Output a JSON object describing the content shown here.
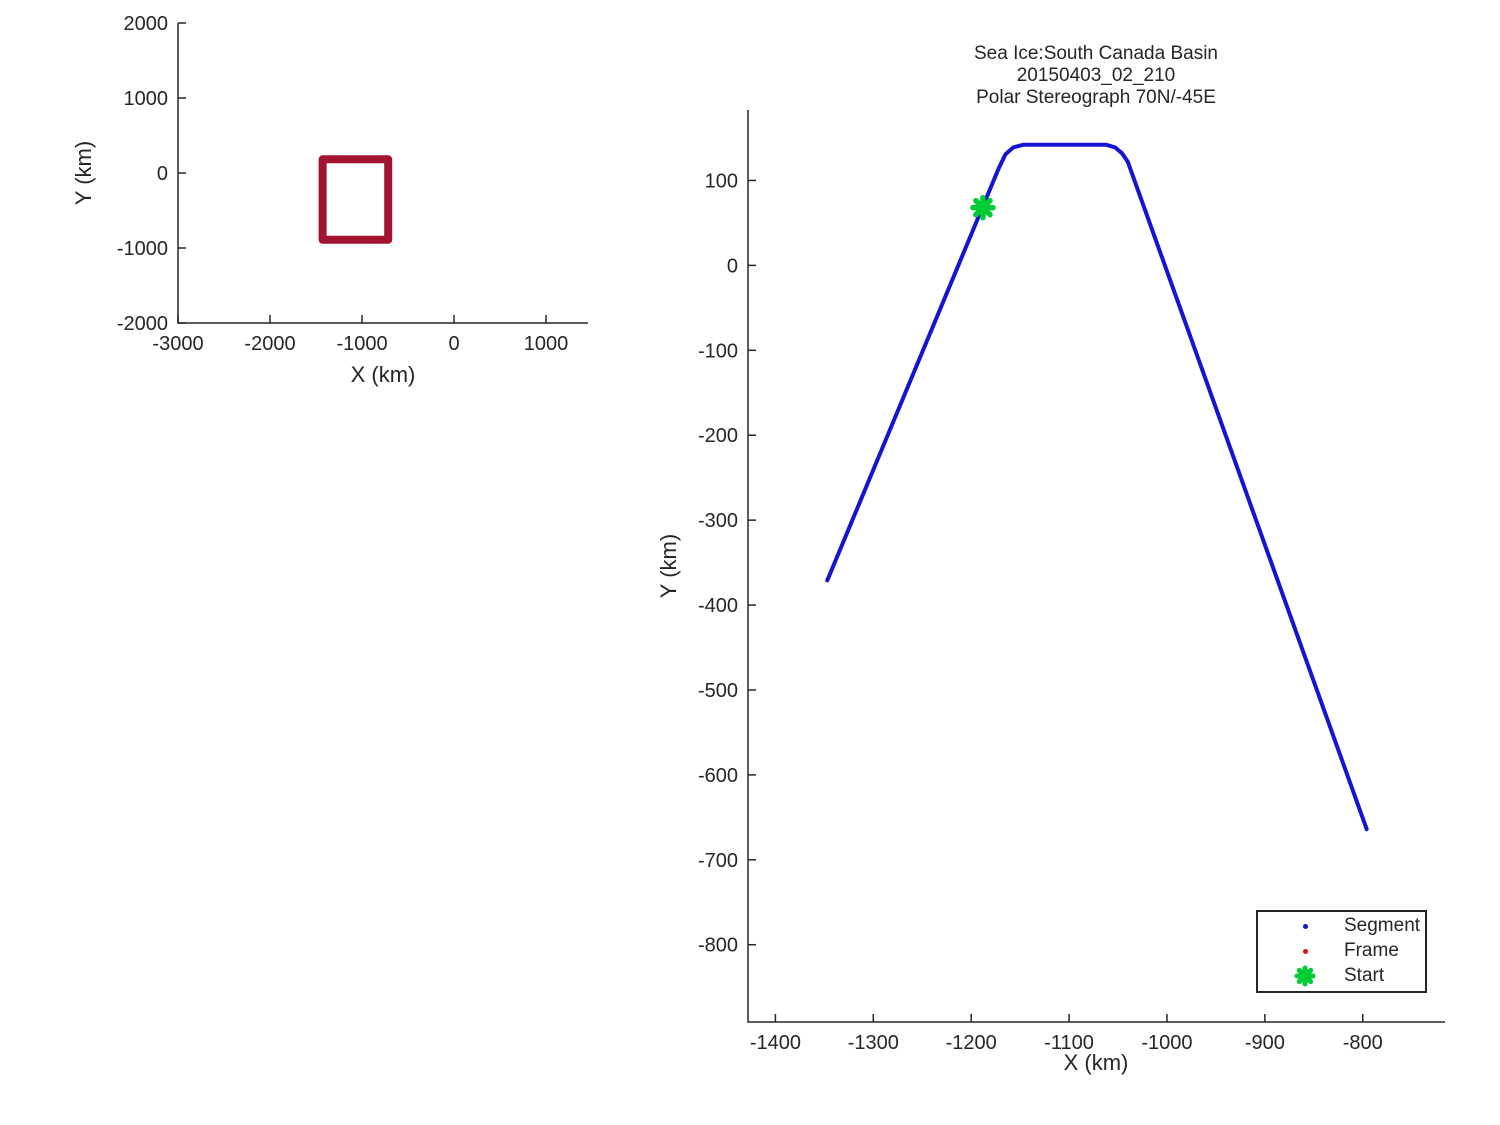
{
  "style": {
    "axis_color": "#262626",
    "background": "#ffffff",
    "segment_blue": "#1414D2",
    "frame_red": "#DC1414",
    "start_green": "#00CC33",
    "coverage_box_red": "#A2142F"
  },
  "chart_data": [
    {
      "id": "overview",
      "type": "line",
      "title": "",
      "xlabel": "X (km)",
      "ylabel": "Y (km)",
      "xlim": [
        -3000,
        1456
      ],
      "ylim": [
        -2000,
        2000
      ],
      "xticks": [
        -3000,
        -2000,
        -1000,
        0,
        1000
      ],
      "yticks": [
        -2000,
        -1000,
        0,
        1000,
        2000
      ],
      "grid": false,
      "series": [
        {
          "name": "coverage-box-outline",
          "color": "#A2142F",
          "width": 8,
          "closed": true,
          "points": [
            [
              -1428,
              183
            ],
            [
              -716,
              183
            ],
            [
              -716,
              -891
            ],
            [
              -1428,
              -891
            ]
          ]
        }
      ]
    },
    {
      "id": "trajectory",
      "type": "line",
      "title_lines": [
        "Sea Ice:South Canada Basin",
        "20150403_02_210",
        "Polar Stereograph 70N/-45E"
      ],
      "xlabel": "X (km)",
      "ylabel": "Y (km)",
      "xlim": [
        -1428,
        -716
      ],
      "ylim": [
        -891,
        183
      ],
      "xticks": [
        -1400,
        -1300,
        -1200,
        -1100,
        -1000,
        -900,
        -800
      ],
      "yticks": [
        -800,
        -700,
        -600,
        -500,
        -400,
        -300,
        -200,
        -100,
        0,
        100
      ],
      "grid": false,
      "series": [
        {
          "name": "segment-track",
          "color": "#1414D2",
          "width": 4,
          "closed": false,
          "points": [
            [
              -1347,
              -371
            ],
            [
              -1172,
              114
            ],
            [
              -1165,
              131
            ],
            [
              -1157,
              139
            ],
            [
              -1147,
              142
            ],
            [
              -1062,
              142
            ],
            [
              -1053,
              139
            ],
            [
              -1046,
              132
            ],
            [
              -1040,
              122
            ],
            [
              -796,
              -664
            ]
          ]
        }
      ],
      "start_marker": {
        "x": -1188,
        "y": 68,
        "color": "#00CC33",
        "size": 10
      },
      "legend": {
        "position": "lower right",
        "items": [
          {
            "label": "Segment",
            "marker": "dot",
            "color": "#1414D2"
          },
          {
            "label": "Frame",
            "marker": "dot",
            "color": "#DC1414"
          },
          {
            "label": "Start",
            "marker": "asterisk",
            "color": "#00CC33"
          }
        ]
      }
    }
  ]
}
